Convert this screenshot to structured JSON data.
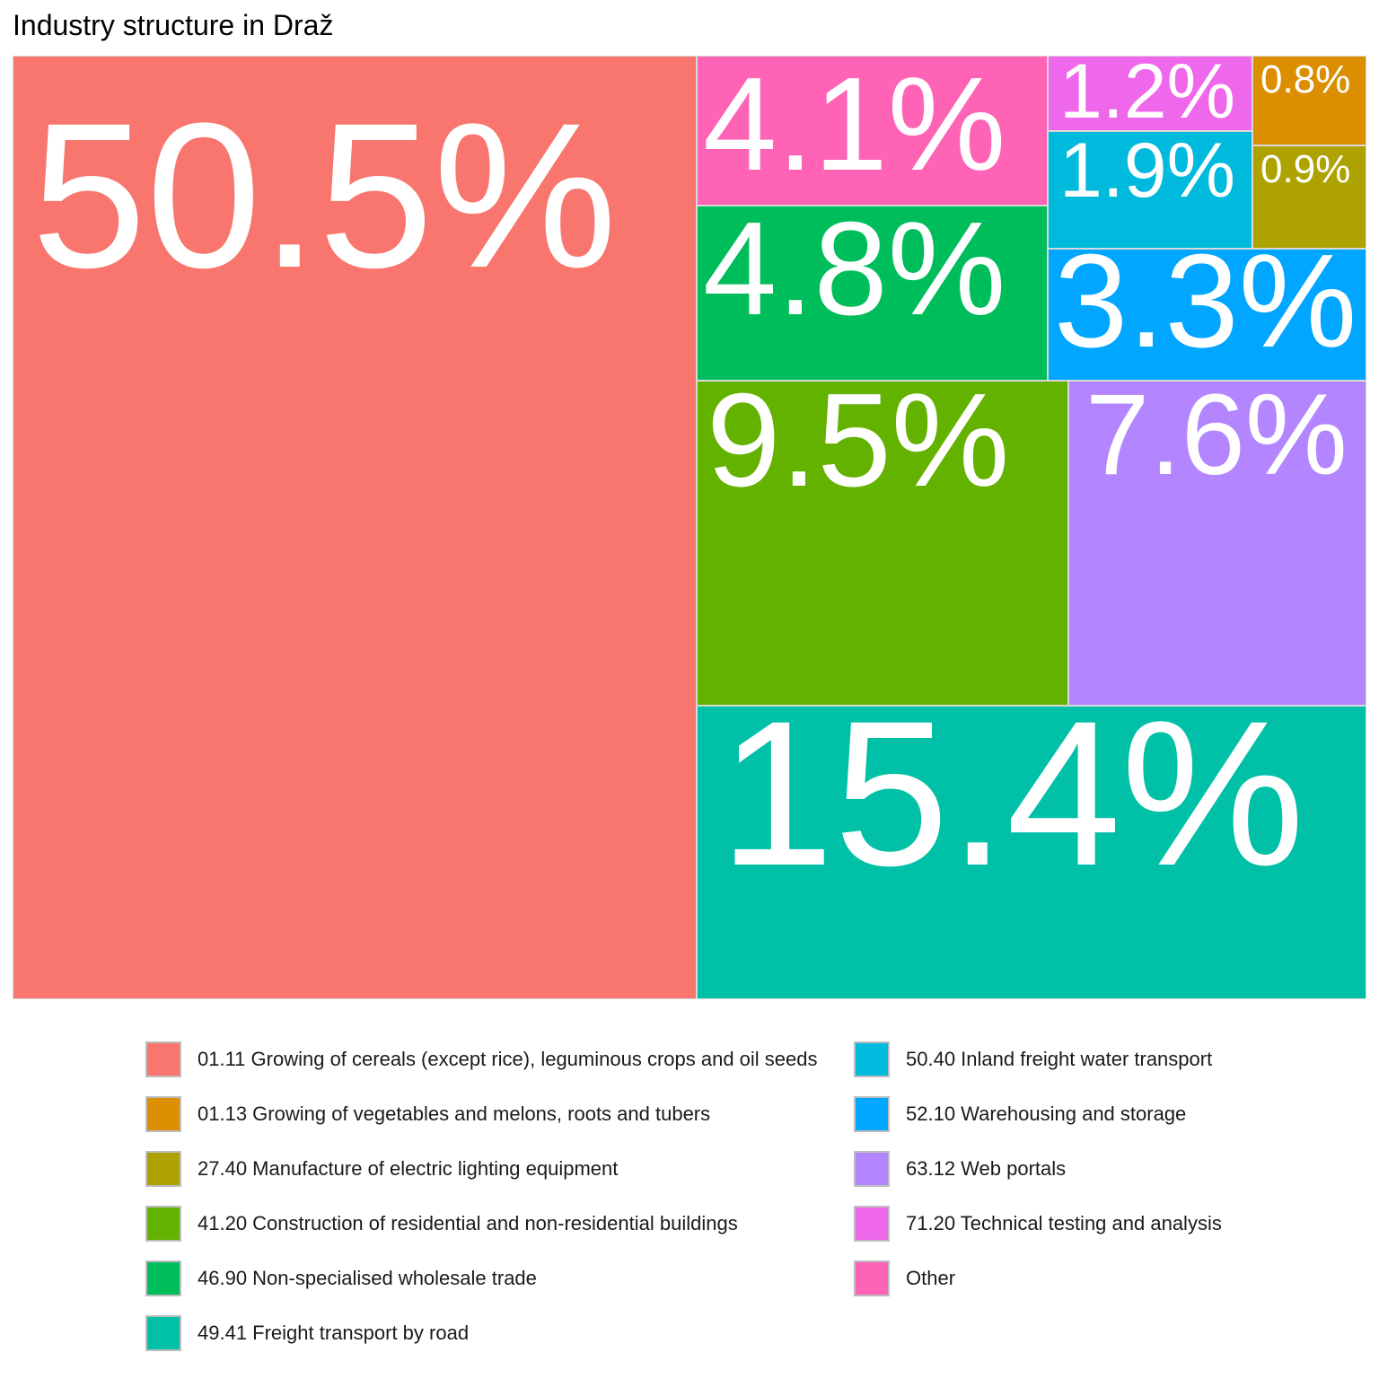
{
  "chart_data": {
    "type": "treemap",
    "title": "Industry structure in Draž",
    "unit": "%",
    "items": [
      {
        "code": "01.11",
        "name": "01.11 Growing of cereals (except rice), leguminous crops and oil seeds",
        "value": 50.5,
        "label": "50.5%",
        "color": "#F8766D"
      },
      {
        "code": "01.13",
        "name": "01.13 Growing of vegetables and melons, roots and tubers",
        "value": 0.8,
        "label": "0.8%",
        "color": "#DB8E00"
      },
      {
        "code": "27.40",
        "name": "27.40 Manufacture of electric lighting equipment",
        "value": 0.9,
        "label": "0.9%",
        "color": "#AEA200"
      },
      {
        "code": "41.20",
        "name": "41.20 Construction of residential and non-residential buildings",
        "value": 9.5,
        "label": "9.5%",
        "color": "#64B200"
      },
      {
        "code": "46.90",
        "name": "46.90 Non-specialised wholesale trade",
        "value": 4.8,
        "label": "4.8%",
        "color": "#00BD5C"
      },
      {
        "code": "49.41",
        "name": "49.41 Freight transport by road",
        "value": 15.4,
        "label": "15.4%",
        "color": "#00C1A7"
      },
      {
        "code": "50.40",
        "name": "50.40 Inland freight water transport",
        "value": 1.9,
        "label": "1.9%",
        "color": "#00BADE"
      },
      {
        "code": "52.10",
        "name": "52.10 Warehousing and storage",
        "value": 3.3,
        "label": "3.3%",
        "color": "#00A6FF"
      },
      {
        "code": "63.12",
        "name": "63.12 Web portals",
        "value": 7.6,
        "label": "7.6%",
        "color": "#B385FF"
      },
      {
        "code": "71.20",
        "name": "71.20 Technical testing and analysis",
        "value": 1.2,
        "label": "1.2%",
        "color": "#EF67EB"
      },
      {
        "code": "Other",
        "name": "Other",
        "value": 4.1,
        "label": "4.1%",
        "color": "#FF63B6"
      }
    ],
    "legend_position": "bottom"
  }
}
